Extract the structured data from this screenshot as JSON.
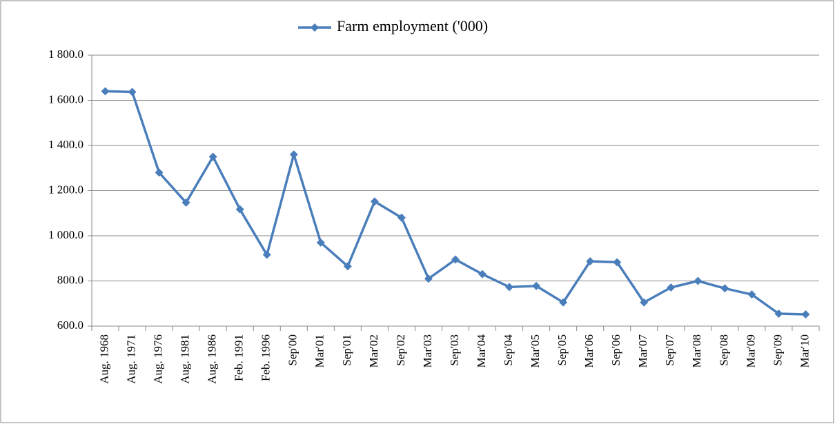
{
  "chart_data": {
    "type": "line",
    "categories": [
      "Aug. 1968",
      "Aug. 1971",
      "Aug. 1976",
      "Aug. 1981",
      "Aug. 1986",
      "Feb. 1991",
      "Feb. 1996",
      "Sep'00",
      "Mar'01",
      "Sep'01",
      "Mar'02",
      "Sep'02",
      "Mar'03",
      "Sep'03",
      "Mar'04",
      "Sep'04",
      "Mar'05",
      "Sep'05",
      "Mar'06",
      "Sep'06",
      "Mar'07",
      "Sep'07",
      "Mar'08",
      "Sep'08",
      "Mar'09",
      "Sep'09",
      "Mar'10"
    ],
    "series": [
      {
        "name": "Farm employment ('000)",
        "color": "#4a7ebb",
        "values": [
          1640,
          1637,
          1280,
          1147,
          1350,
          1117,
          916,
          1360,
          970,
          865,
          1152,
          1080,
          810,
          895,
          830,
          773,
          778,
          705,
          887,
          883,
          705,
          771,
          800,
          767,
          740,
          655,
          652
        ]
      }
    ],
    "ylim": [
      600,
      1800
    ],
    "yticks": [
      {
        "value": 600,
        "label": "600.0"
      },
      {
        "value": 800,
        "label": "800.0"
      },
      {
        "value": 1000,
        "label": "1 000.0"
      },
      {
        "value": 1200,
        "label": "1 200.0"
      },
      {
        "value": 1400,
        "label": "1 400.0"
      },
      {
        "value": 1600,
        "label": "1 600.0"
      },
      {
        "value": 1800,
        "label": "1 800.0"
      }
    ],
    "grid": true,
    "legend": "top"
  }
}
